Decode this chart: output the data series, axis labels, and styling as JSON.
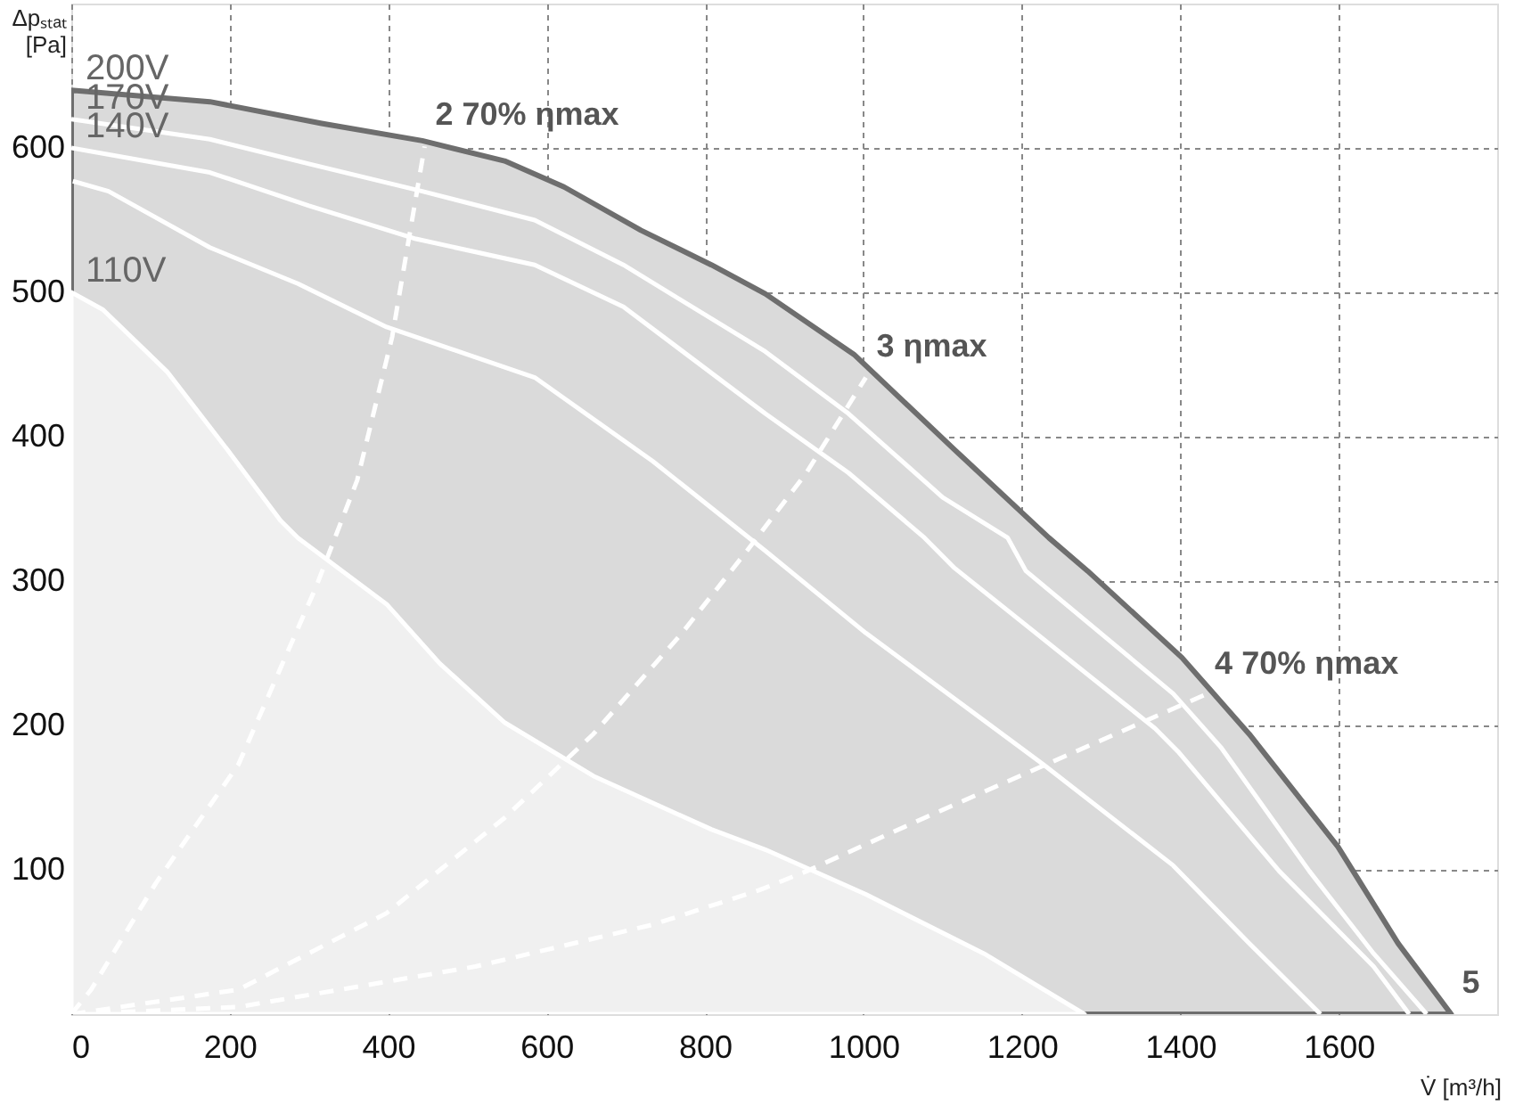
{
  "chart_data": {
    "type": "line",
    "xlabel": "V̇ [m³/h]",
    "ylabel": "Δpₛₜₐₜ [Pa]",
    "xlim": [
      0,
      1800
    ],
    "ylim": [
      0,
      700
    ],
    "xticks": [
      0,
      200,
      400,
      600,
      800,
      1000,
      1200,
      1400,
      1600
    ],
    "yticks": [
      100,
      200,
      300,
      400,
      500,
      600
    ],
    "grid": true,
    "marker": "none",
    "series": [
      {
        "name": "200V",
        "type": "area",
        "color": "#dadada",
        "x": [
          0,
          175,
          316,
          443,
          547,
          622,
          719,
          808,
          876,
          988,
          1115,
          1234,
          1283,
          1402,
          1487,
          1599,
          1675,
          1742
        ],
        "values": [
          640,
          632,
          617,
          605,
          591,
          573,
          543,
          519,
          499,
          457,
          391,
          330,
          307,
          247,
          194,
          116,
          49,
          0
        ]
      },
      {
        "name": "110V",
        "type": "area",
        "color": "#f0f0f0",
        "x": [
          0,
          40,
          121,
          197,
          264,
          286,
          398,
          465,
          547,
          659,
          808,
          876,
          1003,
          1152,
          1279
        ],
        "values": [
          500,
          488,
          445,
          391,
          342,
          330,
          284,
          243,
          202,
          165,
          128,
          114,
          83,
          42,
          0
        ]
      },
      {
        "name": "170V",
        "color": "#ffffff",
        "line_style": "solid",
        "x": [
          0,
          175,
          300,
          443,
          585,
          697,
          876,
          981,
          1100,
          1182,
          1205,
          1391,
          1451,
          1563,
          1644,
          1711
        ],
        "values": [
          620,
          606,
          589,
          570,
          550,
          519,
          459,
          416,
          358,
          330,
          307,
          222,
          185,
          99,
          42,
          0
        ]
      },
      {
        "name": "140V",
        "color": "#ffffff",
        "line_style": "solid",
        "x": [
          0,
          175,
          300,
          435,
          585,
          697,
          876,
          981,
          1077,
          1115,
          1368,
          1397,
          1525,
          1644,
          1689
        ],
        "values": [
          600,
          583,
          560,
          537,
          519,
          490,
          416,
          375,
          330,
          309,
          198,
          182,
          99,
          33,
          0
        ]
      },
      {
        "color": "#ffffff",
        "line_style": "solid",
        "x": [
          2,
          47,
          175,
          286,
          398,
          585,
          734,
          876,
          1003,
          1227,
          1391,
          1487,
          1577
        ],
        "values": [
          577,
          570,
          531,
          506,
          476,
          441,
          383,
          321,
          264,
          173,
          103,
          49,
          0
        ]
      },
      {
        "color": "#ffffff",
        "line_style": "dashed",
        "x": [
          0,
          25,
          107,
          211,
          309,
          361,
          405,
          446
        ],
        "values": [
          0,
          17,
          91,
          173,
          296,
          370,
          469,
          601
        ]
      },
      {
        "color": "#ffffff",
        "line_style": "dashed",
        "x": [
          0,
          211,
          398,
          547,
          659,
          771,
          853,
          928,
          1003
        ],
        "values": [
          0,
          17,
          70,
          136,
          194,
          264,
          321,
          375,
          441
        ]
      },
      {
        "color": "#ffffff",
        "line_style": "dashed",
        "x": [
          0,
          211,
          510,
          734,
          869,
          928,
          1077,
          1264,
          1430
        ],
        "values": [
          0,
          5,
          33,
          62,
          86,
          99,
          136,
          181,
          221
        ]
      }
    ],
    "annotations": [
      {
        "text": "2 70% ηmax",
        "x": 446,
        "y": 601
      },
      {
        "text": "3 ηmax",
        "x": 1003,
        "y": 441
      },
      {
        "text": "4 70% ηmax",
        "x": 1430,
        "y": 221
      },
      {
        "text": "5",
        "x": 1742,
        "y": 0
      }
    ]
  }
}
